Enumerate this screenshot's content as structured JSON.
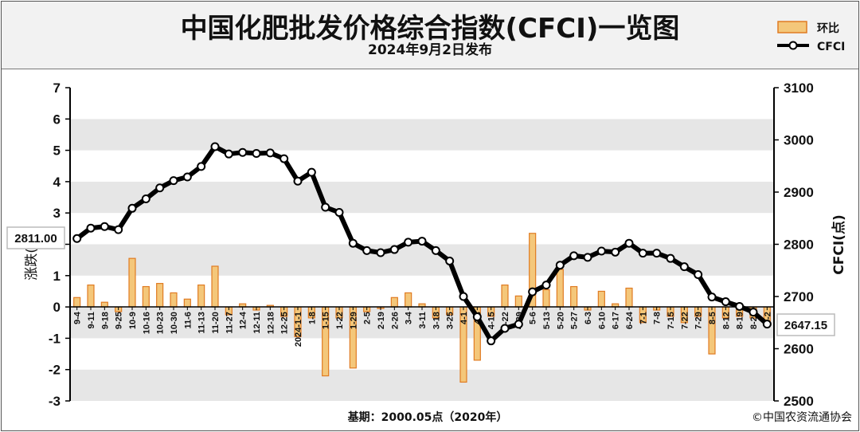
{
  "header": {
    "title": "中国化肥批发价格综合指数(CFCI)一览图",
    "subtitle": "2024年9月2日发布"
  },
  "legend": {
    "bar_label": "环比",
    "line_label": "CFCI"
  },
  "footer": {
    "base": "基期：2000.05点（2020年）",
    "credit": "©中国农资流通协会"
  },
  "callouts": {
    "start_value": "2811.00",
    "end_value": "2647.15"
  },
  "colors": {
    "bar_fill": "#f4c77a",
    "bar_stroke": "#e07b22",
    "line": "#000000",
    "band": "#e6e6e6"
  },
  "chart_data": {
    "type": "bar+line",
    "ylabel_left": "涨跌(%)",
    "ylabel_right": "CFCI(点)",
    "ylim_left": [
      -3,
      7
    ],
    "ylim_right": [
      2500,
      3100
    ],
    "yticks_left": [
      -3,
      -2,
      -1,
      0,
      1,
      2,
      3,
      4,
      5,
      6,
      7
    ],
    "yticks_right": [
      2500,
      2600,
      2700,
      2800,
      2900,
      3000,
      3100
    ],
    "categories": [
      "9-4",
      "9-11",
      "9-18",
      "9-25",
      "10-9",
      "10-16",
      "10-23",
      "10-30",
      "11-6",
      "11-13",
      "11-20",
      "11-27",
      "12-4",
      "12-11",
      "12-18",
      "12-25",
      "2024-1-1",
      "1-8",
      "1-15",
      "1-22",
      "1-29",
      "2-5",
      "2-19",
      "2-26",
      "3-4",
      "3-11",
      "3-18",
      "3-25",
      "4-1",
      "4-8",
      "4-15",
      "4-22",
      "4-29",
      "5-6",
      "5-13",
      "5-20",
      "5-27",
      "6-3",
      "6-10",
      "6-17",
      "6-24",
      "7-1",
      "7-8",
      "7-15",
      "7-22",
      "7-29",
      "8-5",
      "8-12",
      "8-19",
      "8-26",
      "9-2"
    ],
    "series": [
      {
        "name": "环比",
        "type": "bar",
        "axis": "left",
        "values": [
          0.3,
          0.7,
          0.15,
          -0.15,
          1.55,
          0.65,
          0.75,
          0.45,
          0.25,
          0.7,
          1.3,
          -0.25,
          0.1,
          -0.1,
          0.05,
          -0.3,
          -0.95,
          -0.35,
          -2.2,
          -0.35,
          -1.95,
          -0.15,
          -0.05,
          0.3,
          0.45,
          0.1,
          -0.35,
          -0.25,
          -2.4,
          -1.7,
          -0.3,
          0.7,
          0.35,
          2.35,
          0.55,
          1.2,
          0.65,
          -0.1,
          0.5,
          0.1,
          0.6,
          -0.5,
          -0.1,
          -0.3,
          -0.5,
          -0.3,
          -1.5,
          -0.35,
          -0.3,
          -0.35,
          -0.6
        ]
      },
      {
        "name": "CFCI",
        "type": "line",
        "axis": "right",
        "values": [
          2811,
          2831,
          2834,
          2828,
          2869,
          2887,
          2908,
          2922,
          2929,
          2949,
          2987,
          2973,
          2976,
          2974,
          2975,
          2964,
          2921,
          2938,
          2871,
          2861,
          2802,
          2788,
          2784,
          2790,
          2804,
          2806,
          2788,
          2768,
          2700,
          2661,
          2615,
          2639,
          2647,
          2709,
          2722,
          2760,
          2778,
          2775,
          2787,
          2785,
          2802,
          2783,
          2783,
          2773,
          2757,
          2742,
          2699,
          2690,
          2681,
          2670,
          2647.15
        ]
      }
    ]
  }
}
